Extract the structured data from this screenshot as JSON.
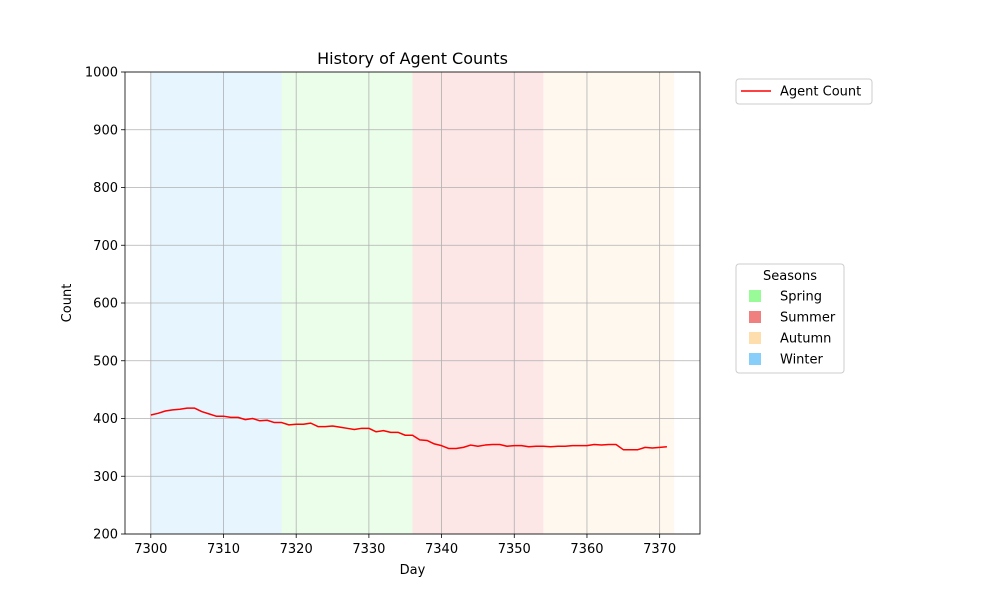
{
  "chart_data": {
    "type": "line",
    "title": "History of Agent Counts",
    "xlabel": "Day",
    "ylabel": "Count",
    "xlim": [
      7296.45,
      7375.55
    ],
    "ylim": [
      200,
      1000
    ],
    "xticks": [
      7300,
      7310,
      7320,
      7330,
      7340,
      7350,
      7360,
      7370
    ],
    "yticks": [
      200,
      300,
      400,
      500,
      600,
      700,
      800,
      900,
      1000
    ],
    "grid": true,
    "series": [
      {
        "name": "Agent Count",
        "color": "#ff0000",
        "x": [
          7300,
          7301,
          7302,
          7303,
          7304,
          7305,
          7306,
          7307,
          7308,
          7309,
          7310,
          7311,
          7312,
          7313,
          7314,
          7315,
          7316,
          7317,
          7318,
          7319,
          7320,
          7321,
          7322,
          7323,
          7324,
          7325,
          7326,
          7327,
          7328,
          7329,
          7330,
          7331,
          7332,
          7333,
          7334,
          7335,
          7336,
          7337,
          7338,
          7339,
          7340,
          7341,
          7342,
          7343,
          7344,
          7345,
          7346,
          7347,
          7348,
          7349,
          7350,
          7351,
          7352,
          7353,
          7354,
          7355,
          7356,
          7357,
          7358,
          7359,
          7360,
          7361,
          7362,
          7363,
          7364,
          7365,
          7366,
          7367,
          7368,
          7369,
          7370,
          7371
        ],
        "values": [
          406,
          409,
          413,
          415,
          416,
          418,
          418,
          412,
          408,
          404,
          404,
          402,
          402,
          398,
          400,
          396,
          397,
          393,
          393,
          389,
          390,
          390,
          392,
          386,
          386,
          387,
          385,
          383,
          381,
          383,
          383,
          377,
          379,
          376,
          376,
          371,
          371,
          363,
          362,
          356,
          353,
          348,
          348,
          350,
          354,
          352,
          354,
          355,
          355,
          352,
          353,
          353,
          351,
          352,
          352,
          351,
          352,
          352,
          353,
          353,
          353,
          355,
          354,
          355,
          355,
          346,
          346,
          346,
          350,
          349,
          350,
          351
        ]
      }
    ],
    "season_bands": [
      {
        "season": "Winter",
        "start": 7300,
        "end": 7318
      },
      {
        "season": "Spring",
        "start": 7318,
        "end": 7336
      },
      {
        "season": "Summer",
        "start": 7336,
        "end": 7354
      },
      {
        "season": "Autumn",
        "start": 7354,
        "end": 7372
      }
    ],
    "legend_series": {
      "placement": "upper right outside",
      "label": "Agent Count"
    },
    "legend_seasons": {
      "title": "Seasons",
      "placement": "center right outside",
      "items": [
        {
          "label": "Spring",
          "color": "#98fb98"
        },
        {
          "label": "Summer",
          "color": "#f08080"
        },
        {
          "label": "Autumn",
          "color": "#ffdead"
        },
        {
          "label": "Winter",
          "color": "#87cefa"
        }
      ]
    }
  }
}
